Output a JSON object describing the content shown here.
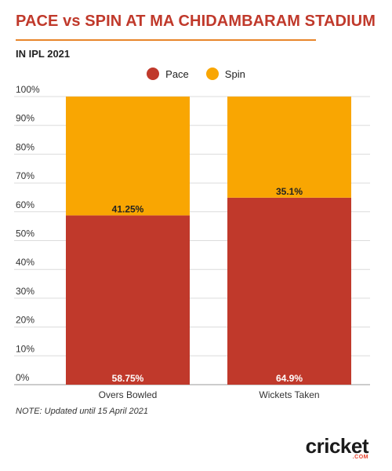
{
  "header": {
    "title": "PACE vs SPIN AT MA CHIDAMBARAM STADIUM",
    "subtitle": "IN IPL 2021"
  },
  "colors": {
    "pace": "#c0392b",
    "spin": "#f9a602",
    "title": "#c0392b",
    "rule": "#e8862a"
  },
  "chart_data": {
    "type": "bar",
    "stacked": true,
    "categories": [
      "Overs Bowled",
      "Wickets Taken"
    ],
    "series": [
      {
        "name": "Pace",
        "values": [
          58.75,
          64.9
        ],
        "labels": [
          "58.75%",
          "64.9%"
        ]
      },
      {
        "name": "Spin",
        "values": [
          41.25,
          35.1
        ],
        "labels": [
          "41.25%",
          "35.1%"
        ]
      }
    ],
    "ylim": [
      0,
      100
    ],
    "yticks": [
      "0%",
      "10%",
      "20%",
      "30%",
      "40%",
      "50%",
      "60%",
      "70%",
      "80%",
      "90%",
      "100%"
    ],
    "grid": true,
    "legend": "top-center"
  },
  "footer": {
    "note": "NOTE: Updated until 15 April 2021",
    "brand": "cricket",
    "brand_sub": ".COM"
  }
}
